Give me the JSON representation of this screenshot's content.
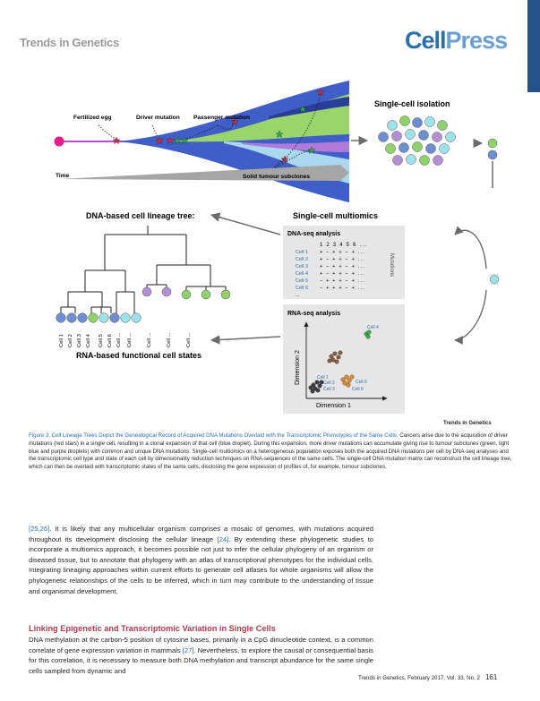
{
  "header": {
    "journal": "Trends in Genetics",
    "logo_cell": "Cell",
    "logo_press": "Press"
  },
  "figure": {
    "labels": {
      "fertilized_egg": "Fertilized egg",
      "driver_mutation": "Driver mutation",
      "passenger_mutation": "Passenger mutation",
      "time": "Time",
      "solid_tumour_subclones": "Solid tumour subclones",
      "single_cell_isolation": "Single-cell isolation",
      "lineage_tree_title": "DNA-based cell lineage tree:",
      "multiomics_title": "Single-cell multiomics",
      "rna_states": "RNA-based functional cell states",
      "dnaseq_title": "DNA-seq analysis",
      "rnaseq_title": "RNA-seq analysis",
      "mutations_axis": "Mutations",
      "dimension_1": "Dimension 1",
      "dimension_2": "Dimension 2"
    },
    "matrix": {
      "col_header": "1 2 3 4 5 6 ...",
      "rows": [
        {
          "cell": "Cell 1",
          "values": "+ − + + − + ..."
        },
        {
          "cell": "Cell 2",
          "values": "+ − + + − + ..."
        },
        {
          "cell": "Cell 3",
          "values": "+ − + + − + ..."
        },
        {
          "cell": "Cell 4",
          "values": "+ − + + − + ..."
        },
        {
          "cell": "Cell 5",
          "values": "− + + + − + ..."
        },
        {
          "cell": "Cell 6",
          "values": "− + + + − + ..."
        }
      ],
      "row_ellipsis": "..."
    },
    "leaf_labels": [
      "Cell 1",
      "Cell 2",
      "Cell 3",
      "Cell 4",
      "Cell 5",
      "Cell 6",
      "Cell ...",
      "Cell ...",
      "Cell ...",
      "Cell ...",
      "Cell ..."
    ],
    "scatter_labels": {
      "cell1": "Cell 1",
      "cell2": "Cell 2",
      "cell3": "Cell 3",
      "cell4": "Cell 4",
      "cell5": "Cell 5",
      "cell6": "Cell 6"
    },
    "colors": {
      "blue_cell": "#6d8fd1",
      "green_cell": "#8fd16a",
      "purple_cell": "#b58fd6",
      "teal_cell": "#9de2ea",
      "egg": "#e8198b",
      "driver_star": "#d9263c",
      "passenger_star": "#2aa84a",
      "brand": "#2c6fad"
    }
  },
  "credit": "Trends in Genetics",
  "caption": {
    "title": "Figure 3. Cell Lineage Trees Depict the Genealogical Record of Acquired DNA Mutations Overlaid with the Transcriptomic Phenotypes of the Same Cells.",
    "body": " Cancers arise due to the acquisition of driver mutations (red stars) in a single cell, resulting in a clonal expansion of that cell (blue droplet). During this expansion, more driver mutations can accumulate giving rise to tumour subclones (green, light blue and purple droplets) with common and unique DNA mutations. Single-cell multiomics on a heterogeneous population exposes both the acquired DNA mutations per cell by DNA-seq analyses and the transcriptomic cell type and state of each cell by dimensionality reduction techniques on RNA-sequences of the same cells. The single-cell DNA mutation matrix can reconstruct the cell lineage tree, which can then be overlaid with transcriptomic states of the same cells, disclosing the gene expression of profiles of, for example, tumour subclones."
  },
  "body": {
    "p1_ref_a": "[25,26]",
    "p1_text_a": ". It is likely that any multicellular organism comprises a mosaic of genomes, with mutations acquired throughout its development disclosing the cellular lineage ",
    "p1_ref_b": "[24]",
    "p1_text_b": ". By extending these phylogenetic studies to incorporate a multiomics approach, it becomes possible not just to infer the cellular phylogeny of an organism or diseased tissue, but to annotate that phylogeny with an atlas of transcriptional phenotypes for the individual cells. Integrating lineaging approaches within current efforts to generate cell atlases for whole organisms will allow the phylogenetic relationships of the cells to be inferred, which in turn may contribute to the understanding of tissue and organismal development.",
    "section_heading": "Linking Epigenetic and Transcriptomic Variation in Single Cells",
    "p2_text_a": "DNA methylation at the carbon-5 position of cytosine bases, primarily in a CpG dinucleotide context, is a common correlate of gene expression variation in mammals ",
    "p2_ref": "[27]",
    "p2_text_b": ". Nevertheless, to explore the causal or consequential basis for this correlation, it is necessary to measure both DNA methylation and transcript abundance for the same single cells sampled from dynamic and"
  },
  "footer": {
    "citation": "Trends in Genetics, February 2017, Vol. 33, No. 2",
    "page": "161"
  }
}
